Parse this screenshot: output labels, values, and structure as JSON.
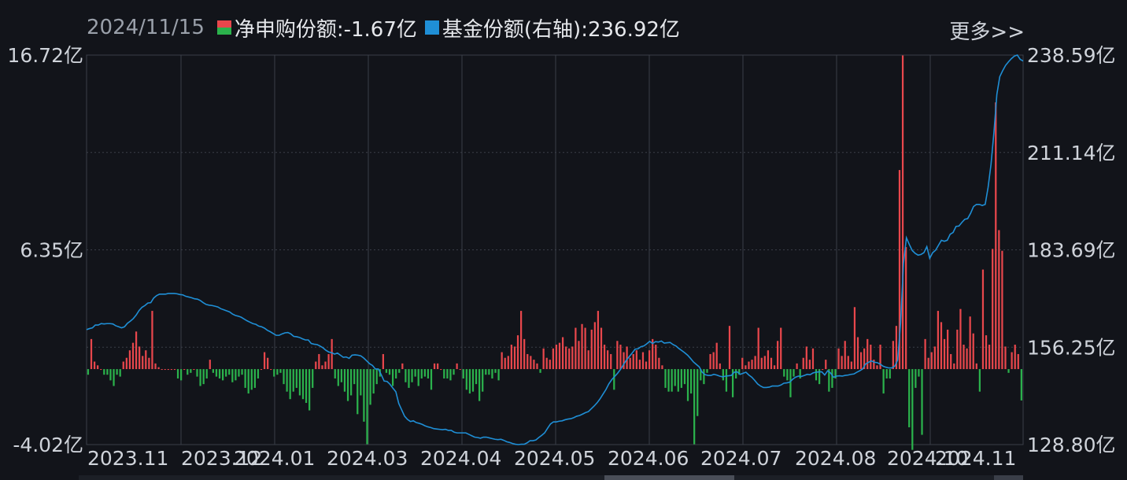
{
  "header": {
    "date": "2024/11/15",
    "legend_net": "净申购份额:-1.67亿",
    "legend_share": "基金份额(右轴):236.92亿",
    "more": "更多>>"
  },
  "colors": {
    "background": "#12141a",
    "positive_bar": "#e8474c",
    "negative_bar": "#2bb24c",
    "line": "#1f8fd6",
    "grid": "#3a3e48"
  },
  "chart_data": {
    "type": "bar+line",
    "title": "",
    "left_axis": {
      "min": -4.02,
      "max": 16.72,
      "tick_labels": [
        "16.72亿",
        "6.35亿",
        "-4.02亿"
      ]
    },
    "right_axis": {
      "min": 128.8,
      "max": 238.59,
      "tick_labels": [
        "238.59亿",
        "211.14亿",
        "183.69亿",
        "156.25亿",
        "128.80亿"
      ]
    },
    "x_tick_labels": [
      "2023.11",
      "2023.12",
      "2024.01",
      "2024.03",
      "2024.04",
      "2024.05",
      "2024.06",
      "2024.07",
      "2024.08",
      "2024.10",
      "2024.11"
    ],
    "series": [
      {
        "name": "净申购份额",
        "unit": "亿",
        "values": [
          -0.3,
          1.6,
          0.4,
          0.2,
          0,
          -0.3,
          -0.3,
          -0.6,
          -0.9,
          -0.3,
          -0.4,
          0.4,
          0.6,
          1,
          1.4,
          2,
          1.2,
          0.7,
          1,
          0.6,
          3.1,
          0.3,
          0.1,
          0,
          0,
          0,
          0,
          0,
          -0.5,
          -0.6,
          0,
          -0.3,
          -0.2,
          0,
          -0.4,
          -0.9,
          -0.8,
          -0.5,
          0.5,
          -0.2,
          -0.4,
          -0.5,
          -0.6,
          -0.4,
          -0.3,
          -0.7,
          -0.6,
          -0.4,
          -0.3,
          -1,
          -1.3,
          -1.1,
          -1,
          -0.5,
          0,
          0.9,
          0.6,
          0,
          -0.4,
          -0.3,
          -0.2,
          -0.8,
          -1.2,
          -1.6,
          -1.2,
          -1,
          -1.4,
          -1.6,
          -1.8,
          -2.2,
          -1,
          0.4,
          0.8,
          0.2,
          0.4,
          0.8,
          1.6,
          -0.5,
          -0.9,
          -0.7,
          -1.2,
          -1.7,
          -1.4,
          -0.8,
          -2.4,
          -1.4,
          -2.8,
          -4,
          -1.9,
          -1.3,
          -0.8,
          -0.4,
          0.8,
          -0.2,
          -0.3,
          -0.9,
          -0.5,
          -0.2,
          0.3,
          -0.7,
          -1,
          -0.7,
          -0.4,
          -0.9,
          -0.5,
          -0.4,
          -0.5,
          -1.1,
          0.3,
          0.3,
          0,
          -0.5,
          -0.5,
          -0.6,
          -0.3,
          0.3,
          0,
          -0.5,
          -1.1,
          -1.3,
          -1.2,
          -0.8,
          -1.7,
          -1.2,
          -0.3,
          -0.3,
          -0.5,
          -0.2,
          -0.6,
          0.9,
          0.6,
          0.7,
          1.3,
          1.2,
          1.8,
          3.1,
          1.6,
          0.8,
          0.7,
          0.5,
          0.3,
          -0.2,
          1.1,
          0.6,
          0.5,
          1.1,
          1.3,
          1.4,
          1.7,
          1.2,
          1.1,
          1.2,
          2.2,
          1.5,
          2.4,
          2.2,
          1,
          2.1,
          2.5,
          3.1,
          2.2,
          1.3,
          1,
          0.8,
          -1.1,
          1.5,
          1.3,
          0.9,
          1.2,
          0.6,
          0.8,
          1,
          0.5,
          0.9,
          0.4,
          1,
          1.6,
          1.3,
          0.6,
          0.2,
          -1,
          -1.2,
          -1.2,
          -0.9,
          -1.2,
          -1,
          -0.8,
          -1.7,
          -1.3,
          -4,
          -2.5,
          -0.6,
          -0.8,
          -0.2,
          0.8,
          0.9,
          1.4,
          0.3,
          -0.6,
          -1.2,
          2.3,
          -1.5,
          -0.5,
          -0.3,
          0.6,
          0.2,
          0.4,
          0.5,
          0.7,
          2.2,
          0.6,
          0.7,
          1,
          0.6,
          0.2,
          1.5,
          2.2,
          -0.4,
          -0.6,
          -1.5,
          -0.4,
          0.3,
          -0.5,
          0.6,
          1.2,
          0.5,
          1.1,
          -0.6,
          -0.8,
          0,
          0.5,
          -1.2,
          -1.0,
          -0.5,
          1.1,
          0.7,
          1.5,
          0.7,
          0.4,
          3.3,
          1.7,
          0.9,
          1.1,
          1.6,
          1.3,
          0.5,
          0.2,
          1.3,
          -1.3,
          -0.5,
          -0.5,
          1.5,
          2.3,
          10.6,
          16.7,
          6.5,
          -3.1,
          -4.3,
          -1,
          -0.4,
          -3.5,
          1.6,
          0.6,
          0.9,
          1.2,
          3.1,
          2.5,
          1.6,
          2.1,
          0.8,
          0.3,
          2.1,
          3.2,
          1.3,
          1.1,
          2.8,
          1.9,
          0.3,
          -1.2,
          5.3,
          1.8,
          1.3,
          6.4,
          14.2,
          7.4,
          6.3,
          1.2,
          -0.2,
          0.9,
          1.3,
          0.8,
          -1.67
        ]
      },
      {
        "name": "基金份额",
        "unit": "亿",
        "values": [
          161.2,
          161.5,
          161.7,
          162.5,
          162.5,
          162.9,
          162.8,
          162.9,
          162.9,
          162.8,
          162.3,
          162.0,
          161.7,
          162.0,
          163.0,
          163.6,
          164.3,
          165.3,
          166.6,
          167.5,
          168.0,
          168.7,
          168.8,
          170.1,
          170.8,
          171.2,
          171.2,
          171.2,
          171.4,
          171.4,
          171.4,
          171.3,
          171.1,
          171.0,
          170.6,
          170.4,
          170.2,
          169.9,
          169.8,
          169.4,
          168.8,
          168.3,
          168.1,
          168.0,
          167.8,
          167.6,
          167.1,
          166.8,
          166.5,
          166.2,
          165.6,
          165.2,
          165.0,
          164.7,
          164.2,
          163.7,
          163.3,
          162.9,
          162.7,
          162.2,
          162.0,
          161.6,
          161.0,
          160.6,
          160.1,
          159.6,
          159.6,
          160.0,
          160.3,
          160.4,
          160.0,
          159.3,
          159.2,
          159.0,
          158.6,
          158.3,
          158.3,
          157.3,
          157.1,
          157.0,
          156.6,
          156.1,
          155.4,
          154.9,
          154.7,
          154.3,
          154.6,
          154.0,
          153.4,
          153.5,
          153.1,
          154.0,
          154.1,
          154.0,
          153.8,
          153.2,
          152.4,
          151.6,
          151.1,
          150.1,
          150.1,
          148.5,
          146.7,
          146.6,
          145.8,
          144.7,
          143.7,
          140.4,
          138.6,
          136.8,
          135.9,
          135.3,
          135.5,
          135.0,
          134.8,
          134.5,
          134.1,
          133.8,
          133.6,
          133.3,
          133.2,
          133.1,
          133.0,
          133.1,
          132.8,
          132.8,
          132.3,
          132.1,
          132.1,
          132.1,
          132.1,
          131.7,
          131.3,
          130.9,
          130.8,
          130.6,
          130.9,
          130.9,
          130.7,
          130.5,
          130.3,
          130.2,
          130.3,
          130.0,
          129.6,
          129.4,
          129.1,
          128.9,
          128.8,
          128.9,
          128.9,
          129.3,
          129.9,
          129.9,
          130.1,
          130.8,
          131.4,
          132.1,
          133.4,
          134.6,
          135.2,
          135.2,
          135.4,
          135.5,
          135.8,
          136.0,
          136.1,
          136.4,
          136.8,
          137.0,
          137.4,
          137.8,
          138.1,
          138.9,
          139.7,
          140.6,
          141.7,
          143.0,
          144.3,
          145.9,
          147.1,
          148.0,
          148.9,
          150.0,
          151.3,
          152.6,
          153.6,
          154.6,
          155.7,
          155.8,
          156.4,
          156.6,
          157.2,
          157.9,
          157.3,
          157.8,
          157.7,
          158.0,
          157.4,
          157.5,
          157.6,
          157.0,
          156.6,
          155.9,
          155.3,
          154.7,
          154.0,
          153.1,
          152.1,
          151.4,
          150.7,
          149.2,
          148.5,
          148.3,
          148.3,
          148.6,
          148.4,
          148.1,
          147.9,
          148.1,
          148.2,
          148.3,
          149.2,
          149.3,
          148.6,
          148.9,
          149.2,
          148.4,
          147.8,
          146.9,
          145.9,
          145.3,
          144.9,
          144.9,
          145.0,
          145.3,
          145.3,
          145.3,
          145.6,
          146.1,
          146.2,
          146.4,
          147.2,
          147.8,
          148.1,
          148.0,
          148.3,
          148.6,
          148.5,
          149.0,
          149.2,
          149.3,
          149.3,
          148.4,
          149.6,
          149.0,
          147.8,
          148.1,
          148.2,
          148.1,
          148.3,
          148.4,
          148.6,
          148.7,
          149.2,
          149.6,
          150.1,
          151.5,
          152.0,
          152.4,
          152.0,
          151.9,
          151.5,
          150.9,
          150.6,
          150.4,
          150.4,
          150.9,
          152.6,
          163.0,
          179.9,
          187.1,
          185.2,
          183.5,
          182.7,
          182.2,
          182.4,
          182.9,
          184.6,
          181.3,
          182.9,
          183.6,
          185.0,
          186.4,
          186.1,
          186.4,
          188.1,
          188.6,
          190.3,
          190.4,
          191.4,
          192.3,
          192.5,
          194.0,
          195.9,
          196.5,
          196.5,
          196.2,
          196.5,
          201.3,
          207.8,
          216.8,
          227.5,
          232.5,
          234.2,
          235.7,
          236.7,
          237.6,
          238.3,
          238.6,
          237.4,
          236.92
        ]
      }
    ]
  }
}
